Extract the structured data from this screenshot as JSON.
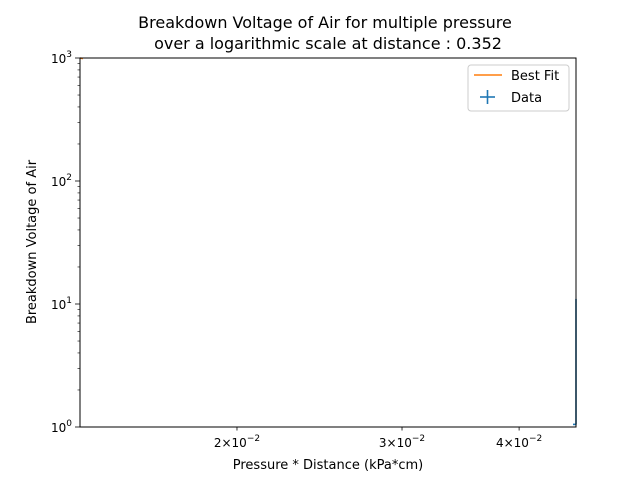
{
  "chart_data": {
    "type": "line",
    "title_line1": "Breakdown Voltage of Air for multiple pressure",
    "title_line2": "over a logarithmic scale at distance : 0.352",
    "xlabel": "Pressure * Distance (kPa*cm)",
    "ylabel": "Breakdown Voltage of Air",
    "xscale": "log",
    "yscale": "log",
    "xlim": [
      0.0136,
      0.046
    ],
    "ylim": [
      1,
      1000
    ],
    "x_ticks": [
      {
        "value": 0.02,
        "mantissa": "2",
        "base": "10",
        "exp": "−2"
      },
      {
        "value": 0.03,
        "mantissa": "3",
        "base": "10",
        "exp": "−2"
      },
      {
        "value": 0.04,
        "mantissa": "4",
        "base": "10",
        "exp": "−2"
      }
    ],
    "y_ticks": [
      {
        "value": 1,
        "base": "10",
        "exp": "0"
      },
      {
        "value": 10,
        "base": "10",
        "exp": "1"
      },
      {
        "value": 100,
        "base": "10",
        "exp": "2"
      },
      {
        "value": 1000,
        "base": "10",
        "exp": "3"
      }
    ],
    "grid": false,
    "legend_position": "top-right",
    "series": [
      {
        "name": "Best Fit",
        "kind": "line",
        "color": "#ff7f0e",
        "x": [
          0.0136,
          0.0137
        ],
        "y": [
          1000,
          990
        ]
      },
      {
        "name": "Data",
        "kind": "errorbar",
        "color": "#1f77b4",
        "x": [
          0.046
        ],
        "y": [
          1.05
        ],
        "yerr_high": [
          11
        ]
      }
    ]
  }
}
